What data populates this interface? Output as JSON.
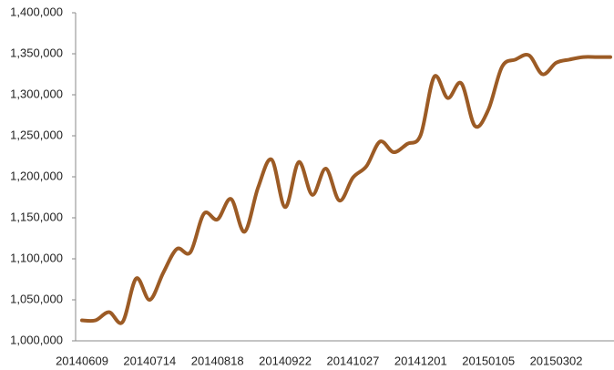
{
  "chart_data": {
    "type": "line",
    "categories": [
      "20140609",
      null,
      null,
      null,
      null,
      "20140714",
      null,
      null,
      null,
      null,
      "20140818",
      null,
      null,
      null,
      null,
      "20140922",
      null,
      null,
      null,
      null,
      "20141027",
      null,
      null,
      null,
      null,
      "20141201",
      null,
      null,
      null,
      null,
      "20150105",
      null,
      null,
      null,
      null,
      "20150302",
      null,
      null,
      null,
      null
    ],
    "series": [
      {
        "color": "#9c5b25",
        "values": [
          1025000,
          1025000,
          1035000,
          1023000,
          1076000,
          1050000,
          1083000,
          1112000,
          1108000,
          1155000,
          1148000,
          1173000,
          1133000,
          1187000,
          1221000,
          1163000,
          1218000,
          1178000,
          1210000,
          1171000,
          1199000,
          1213000,
          1243000,
          1230000,
          1240000,
          1251000,
          1322000,
          1296000,
          1314000,
          1262000,
          1282000,
          1334000,
          1343000,
          1348000,
          1325000,
          1339000,
          1343000,
          1346000,
          1346000,
          1346000
        ]
      }
    ],
    "ylim": [
      1000000,
      1400000
    ],
    "yticks": [
      {
        "value": 1000000,
        "label": "1,000,000"
      },
      {
        "value": 1050000,
        "label": "1,050,000"
      },
      {
        "value": 1100000,
        "label": "1,100,000"
      },
      {
        "value": 1150000,
        "label": "1,150,000"
      },
      {
        "value": 1200000,
        "label": "1,200,000"
      },
      {
        "value": 1250000,
        "label": "1,250,000"
      },
      {
        "value": 1300000,
        "label": "1,300,000"
      },
      {
        "value": 1350000,
        "label": "1,350,000"
      },
      {
        "value": 1400000,
        "label": "1,400,000"
      }
    ],
    "grid": false,
    "smooth": true
  }
}
